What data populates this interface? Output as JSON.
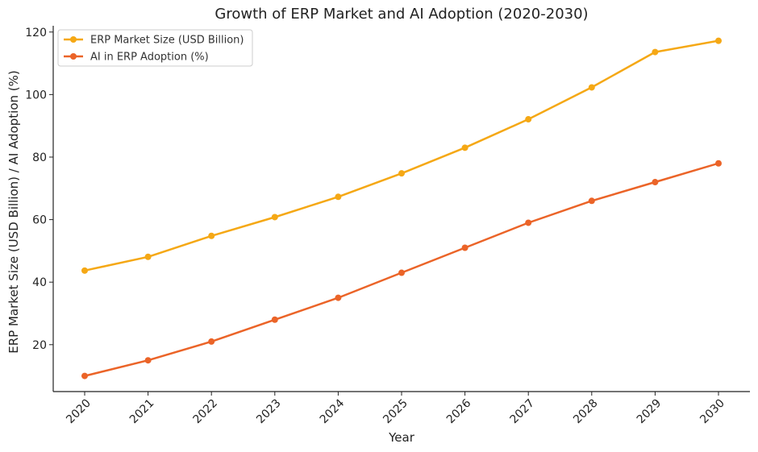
{
  "chart_data": {
    "type": "line",
    "title": "Growth of ERP Market and AI Adoption (2020-2030)",
    "xlabel": "Year",
    "ylabel": "ERP Market Size (USD Billion) / AI Adoption (%)",
    "x": [
      "2020",
      "2021",
      "2022",
      "2023",
      "2024",
      "2025",
      "2026",
      "2027",
      "2028",
      "2029",
      "2030"
    ],
    "ylim": [
      5,
      122
    ],
    "yticks": [
      20,
      40,
      60,
      80,
      100,
      120
    ],
    "grid": false,
    "legend_position": "top-left",
    "series": [
      {
        "name": "ERP Market Size (USD Billion)",
        "color": "#F5A815",
        "values": [
          43.7,
          48.1,
          54.8,
          60.8,
          67.3,
          74.8,
          83.0,
          92.1,
          102.3,
          113.6,
          117.2
        ]
      },
      {
        "name": "AI in ERP Adoption (%)",
        "color": "#EB6428",
        "values": [
          10,
          15,
          21,
          28,
          35,
          43,
          51,
          59,
          66,
          72,
          78
        ]
      }
    ]
  }
}
